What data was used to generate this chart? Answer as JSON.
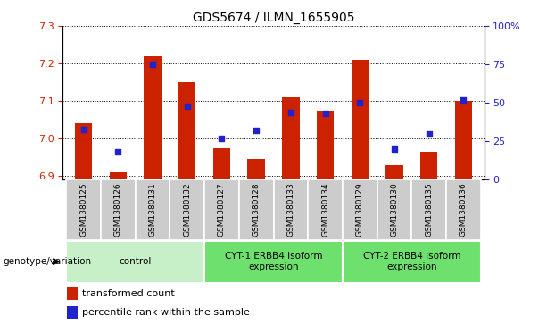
{
  "title": "GDS5674 / ILMN_1655905",
  "samples": [
    "GSM1380125",
    "GSM1380126",
    "GSM1380131",
    "GSM1380132",
    "GSM1380127",
    "GSM1380128",
    "GSM1380133",
    "GSM1380134",
    "GSM1380129",
    "GSM1380130",
    "GSM1380135",
    "GSM1380136"
  ],
  "transformed_count": [
    7.04,
    6.91,
    7.22,
    7.15,
    6.975,
    6.945,
    7.11,
    7.075,
    7.21,
    6.93,
    6.965,
    7.1
  ],
  "percentile_rank": [
    33,
    18,
    75,
    48,
    27,
    32,
    44,
    43,
    50,
    20,
    30,
    52
  ],
  "ylim_left": [
    6.89,
    7.3
  ],
  "ylim_right": [
    0,
    100
  ],
  "yticks_left": [
    6.9,
    7.0,
    7.1,
    7.2,
    7.3
  ],
  "yticks_right": [
    0,
    25,
    50,
    75,
    100
  ],
  "groups": [
    {
      "label": "control",
      "start": 0,
      "end": 4,
      "color": "#c8f0c8"
    },
    {
      "label": "CYT-1 ERBB4 isoform\nexpression",
      "start": 4,
      "end": 8,
      "color": "#6de06d"
    },
    {
      "label": "CYT-2 ERBB4 isoform\nexpression",
      "start": 8,
      "end": 12,
      "color": "#6de06d"
    }
  ],
  "bar_color": "#cc2200",
  "dot_color": "#2222cc",
  "bar_bottom": 6.89,
  "left_tick_color": "#cc2200",
  "right_tick_color": "#2222cc",
  "sample_bg": "#cccccc",
  "legend_square_bar": "#cc2200",
  "legend_square_dot": "#2222cc"
}
